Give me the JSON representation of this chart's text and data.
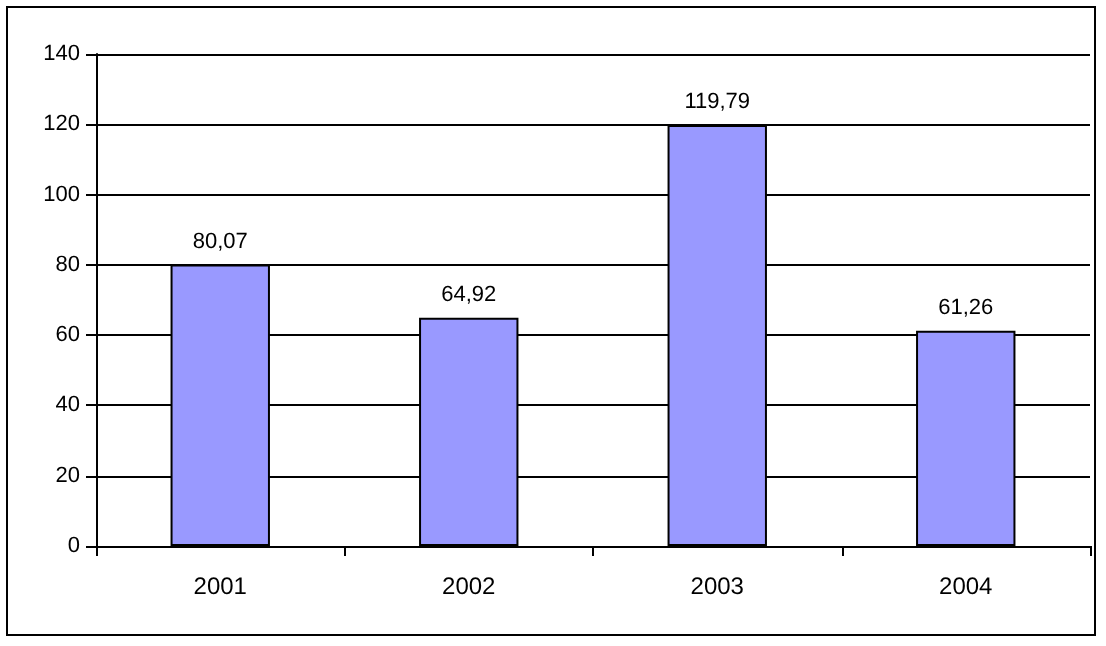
{
  "chart_data": {
    "type": "bar",
    "categories": [
      "2001",
      "2002",
      "2003",
      "2004"
    ],
    "values": [
      80.07,
      64.92,
      119.79,
      61.26
    ],
    "value_labels": [
      "80,07",
      "64,92",
      "119,79",
      "61,26"
    ],
    "color": "#9999ff",
    "ylim": [
      0,
      140
    ],
    "yticks": [
      0,
      20,
      40,
      60,
      80,
      100,
      120,
      140
    ],
    "grid": "y"
  }
}
